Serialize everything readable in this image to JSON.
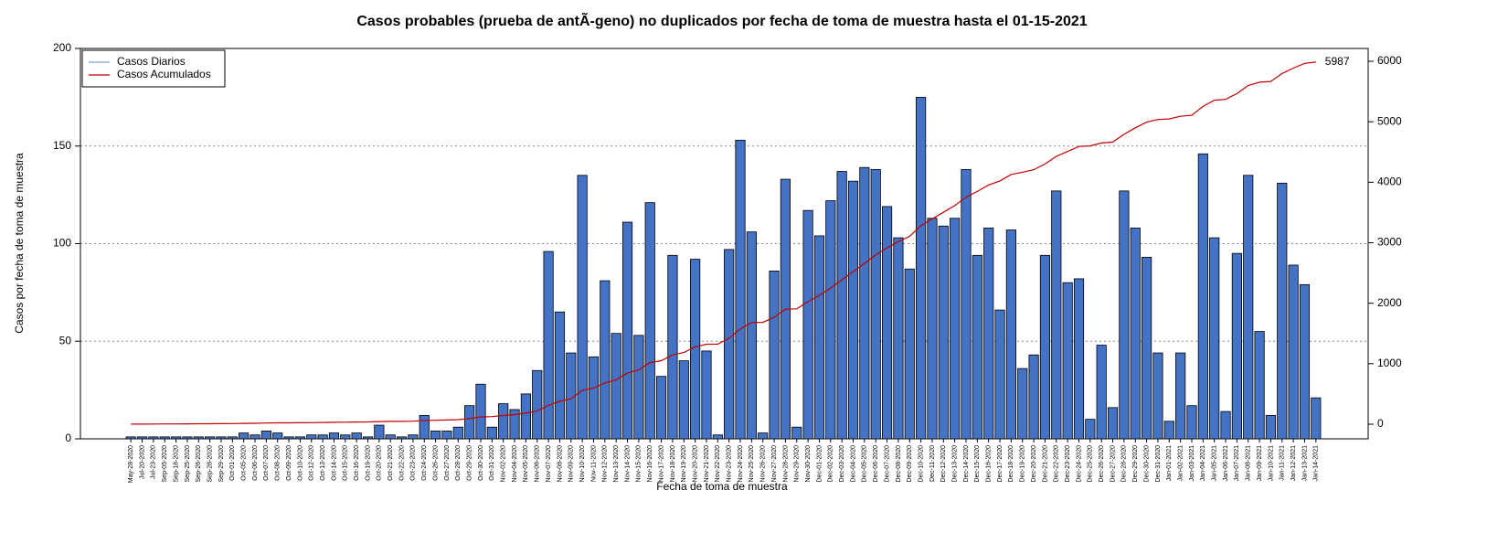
{
  "chart_data": {
    "type": "bar",
    "title": "Casos probables (prueba de antÃ-geno) no duplicados por fecha de toma de muestra hasta el 01-15-2021",
    "x_label": "Fecha de toma de muestra",
    "y_label": "Casos por fecha de toma de muestra",
    "categories": [
      "May-28-2020",
      "Jul-20-2020",
      "Jul-23-2020",
      "Sep-05-2020",
      "Sep-18-2020",
      "Sep-25-2020",
      "Sep-26-2020",
      "Sep-28-2020",
      "Sep-29-2020",
      "Oct-01-2020",
      "Oct-05-2020",
      "Oct-06-2020",
      "Oct-07-2020",
      "Oct-08-2020",
      "Oct-09-2020",
      "Oct-10-2020",
      "Oct-12-2020",
      "Oct-13-2020",
      "Oct-14-2020",
      "Oct-15-2020",
      "Oct-16-2020",
      "Oct-19-2020",
      "Oct-20-2020",
      "Oct-21-2020",
      "Oct-22-2020",
      "Oct-23-2020",
      "Oct-24-2020",
      "Oct-26-2020",
      "Oct-27-2020",
      "Oct-28-2020",
      "Oct-29-2020",
      "Oct-30-2020",
      "Oct-31-2020",
      "Nov-02-2020",
      "Nov-04-2020",
      "Nov-05-2020",
      "Nov-06-2020",
      "Nov-07-2020",
      "Nov-08-2020",
      "Nov-09-2020",
      "Nov-10-2020",
      "Nov-11-2020",
      "Nov-12-2020",
      "Nov-13-2020",
      "Nov-14-2020",
      "Nov-15-2020",
      "Nov-16-2020",
      "Nov-17-2020",
      "Nov-18-2020",
      "Nov-19-2020",
      "Nov-20-2020",
      "Nov-21-2020",
      "Nov-22-2020",
      "Nov-23-2020",
      "Nov-24-2020",
      "Nov-25-2020",
      "Nov-26-2020",
      "Nov-27-2020",
      "Nov-28-2020",
      "Nov-29-2020",
      "Nov-30-2020",
      "Dec-01-2020",
      "Dec-02-2020",
      "Dec-03-2020",
      "Dec-04-2020",
      "Dec-05-2020",
      "Dec-06-2020",
      "Dec-07-2020",
      "Dec-08-2020",
      "Dec-09-2020",
      "Dec-10-2020",
      "Dec-11-2020",
      "Dec-12-2020",
      "Dec-13-2020",
      "Dec-14-2020",
      "Dec-15-2020",
      "Dec-16-2020",
      "Dec-17-2020",
      "Dec-18-2020",
      "Dec-19-2020",
      "Dec-20-2020",
      "Dec-21-2020",
      "Dec-22-2020",
      "Dec-23-2020",
      "Dec-24-2020",
      "Dec-25-2020",
      "Dec-26-2020",
      "Dec-27-2020",
      "Dec-28-2020",
      "Dec-29-2020",
      "Dec-30-2020",
      "Dec-31-2020",
      "Jan-01-2021",
      "Jan-02-2021",
      "Jan-03-2021",
      "Jan-04-2021",
      "Jan-05-2021",
      "Jan-06-2021",
      "Jan-07-2021",
      "Jan-08-2021",
      "Jan-09-2021",
      "Jan-10-2021",
      "Jan-11-2021",
      "Jan-12-2021",
      "Jan-13-2021",
      "Jan-14-2021"
    ],
    "series": [
      {
        "name": "Casos Diarios",
        "color": "#4472c4",
        "legend_color": "#7f9fd8",
        "values": [
          1,
          1,
          1,
          1,
          1,
          1,
          1,
          1,
          1,
          1,
          3,
          2,
          4,
          3,
          1,
          1,
          2,
          2,
          3,
          2,
          3,
          1,
          7,
          2,
          1,
          2,
          12,
          4,
          4,
          6,
          17,
          28,
          6,
          18,
          15,
          23,
          35,
          96,
          65,
          44,
          135,
          42,
          81,
          54,
          111,
          53,
          121,
          32,
          94,
          40,
          92,
          45,
          2,
          97,
          153,
          106,
          3,
          86,
          133,
          6,
          117,
          104,
          122,
          137,
          132,
          139,
          138,
          119,
          103,
          87,
          175,
          113,
          109,
          113,
          138,
          94,
          108,
          66,
          107,
          36,
          43,
          94,
          127,
          80,
          82,
          10,
          48,
          16,
          127,
          108,
          93,
          44,
          9,
          44,
          17,
          146,
          103,
          14,
          95,
          135,
          55,
          12,
          131,
          89,
          79,
          21
        ]
      },
      {
        "name": "Casos Acumulados",
        "color": "#c00000",
        "axis": "y2",
        "cumulative_of": "Casos Diarios"
      }
    ],
    "end_label": "5987",
    "ylim": [
      0,
      200
    ],
    "yticks": [
      0,
      50,
      100,
      150,
      200
    ],
    "y2lim": [
      -242,
      6212
    ],
    "y2ticks": [
      0,
      1000,
      2000,
      3000,
      4000,
      5000,
      6000
    ],
    "grid": true,
    "legend": "top-left"
  }
}
